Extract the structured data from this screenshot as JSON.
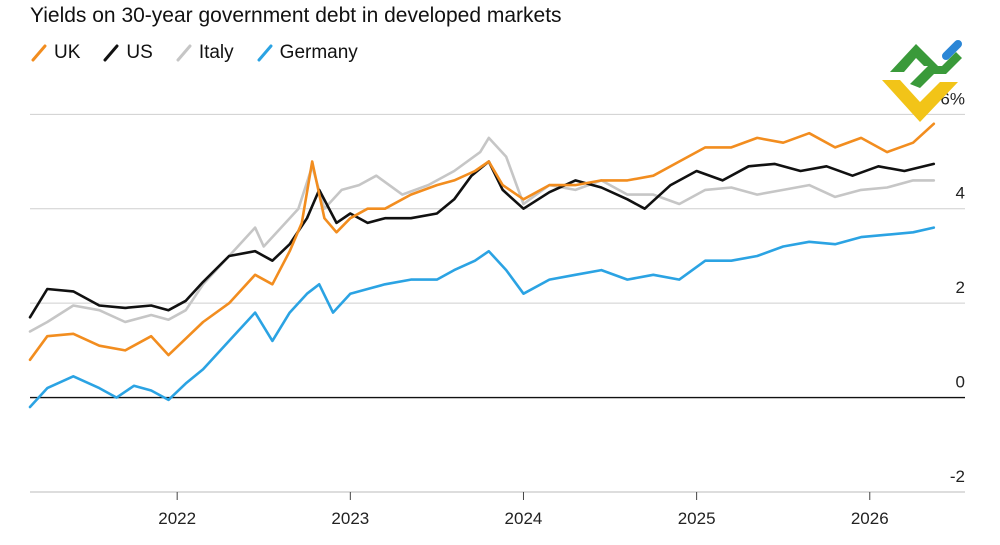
{
  "chart_data": {
    "type": "line",
    "title": "Yields on 30-year government debt in developed markets",
    "xlabel": "",
    "ylabel": "",
    "y_unit_suffix": "%",
    "ylim": [
      -2,
      6.6
    ],
    "y_ticks": [
      -2,
      0,
      2,
      4,
      6
    ],
    "y_tick_labels": [
      "-2",
      "0",
      "2",
      "4",
      "6%"
    ],
    "x_range": [
      2021.15,
      2026.55
    ],
    "x_ticks": [
      2022,
      2023,
      2024,
      2025,
      2026
    ],
    "x_tick_labels": [
      "2022",
      "2023",
      "2024",
      "2025",
      "2026"
    ],
    "grid": true,
    "legend_position": "top-left",
    "series": [
      {
        "name": "Italy",
        "color": "#c6c6c6",
        "points": [
          [
            2021.15,
            1.4
          ],
          [
            2021.25,
            1.6
          ],
          [
            2021.4,
            1.95
          ],
          [
            2021.55,
            1.85
          ],
          [
            2021.7,
            1.6
          ],
          [
            2021.85,
            1.75
          ],
          [
            2021.95,
            1.65
          ],
          [
            2022.05,
            1.85
          ],
          [
            2022.15,
            2.4
          ],
          [
            2022.3,
            3.0
          ],
          [
            2022.45,
            3.6
          ],
          [
            2022.5,
            3.2
          ],
          [
            2022.6,
            3.6
          ],
          [
            2022.7,
            4.0
          ],
          [
            2022.78,
            4.9
          ],
          [
            2022.85,
            4.0
          ],
          [
            2022.95,
            4.4
          ],
          [
            2023.05,
            4.5
          ],
          [
            2023.15,
            4.7
          ],
          [
            2023.3,
            4.3
          ],
          [
            2023.45,
            4.5
          ],
          [
            2023.6,
            4.8
          ],
          [
            2023.75,
            5.2
          ],
          [
            2023.8,
            5.5
          ],
          [
            2023.9,
            5.1
          ],
          [
            2024.0,
            4.1
          ],
          [
            2024.15,
            4.5
          ],
          [
            2024.3,
            4.4
          ],
          [
            2024.45,
            4.6
          ],
          [
            2024.6,
            4.3
          ],
          [
            2024.75,
            4.3
          ],
          [
            2024.9,
            4.1
          ],
          [
            2025.05,
            4.4
          ],
          [
            2025.2,
            4.45
          ],
          [
            2025.35,
            4.3
          ],
          [
            2025.5,
            4.4
          ],
          [
            2025.65,
            4.5
          ],
          [
            2025.8,
            4.25
          ],
          [
            2025.95,
            4.4
          ],
          [
            2026.1,
            4.45
          ],
          [
            2026.25,
            4.6
          ],
          [
            2026.37,
            4.6
          ]
        ]
      },
      {
        "name": "US",
        "color": "#111111",
        "points": [
          [
            2021.15,
            1.7
          ],
          [
            2021.25,
            2.3
          ],
          [
            2021.4,
            2.25
          ],
          [
            2021.55,
            1.95
          ],
          [
            2021.7,
            1.9
          ],
          [
            2021.85,
            1.95
          ],
          [
            2021.95,
            1.85
          ],
          [
            2022.05,
            2.05
          ],
          [
            2022.15,
            2.45
          ],
          [
            2022.3,
            3.0
          ],
          [
            2022.45,
            3.1
          ],
          [
            2022.55,
            2.9
          ],
          [
            2022.65,
            3.25
          ],
          [
            2022.75,
            3.8
          ],
          [
            2022.82,
            4.4
          ],
          [
            2022.92,
            3.7
          ],
          [
            2023.0,
            3.9
          ],
          [
            2023.1,
            3.7
          ],
          [
            2023.2,
            3.8
          ],
          [
            2023.35,
            3.8
          ],
          [
            2023.5,
            3.9
          ],
          [
            2023.6,
            4.2
          ],
          [
            2023.7,
            4.7
          ],
          [
            2023.8,
            5.0
          ],
          [
            2023.88,
            4.4
          ],
          [
            2024.0,
            4.0
          ],
          [
            2024.15,
            4.35
          ],
          [
            2024.3,
            4.6
          ],
          [
            2024.45,
            4.45
          ],
          [
            2024.6,
            4.2
          ],
          [
            2024.7,
            4.0
          ],
          [
            2024.85,
            4.5
          ],
          [
            2025.0,
            4.8
          ],
          [
            2025.15,
            4.6
          ],
          [
            2025.3,
            4.9
          ],
          [
            2025.45,
            4.95
          ],
          [
            2025.6,
            4.8
          ],
          [
            2025.75,
            4.9
          ],
          [
            2025.9,
            4.7
          ],
          [
            2026.05,
            4.9
          ],
          [
            2026.2,
            4.8
          ],
          [
            2026.37,
            4.95
          ]
        ]
      },
      {
        "name": "UK",
        "color": "#f28d1f",
        "points": [
          [
            2021.15,
            0.8
          ],
          [
            2021.25,
            1.3
          ],
          [
            2021.4,
            1.35
          ],
          [
            2021.55,
            1.1
          ],
          [
            2021.7,
            1.0
          ],
          [
            2021.85,
            1.3
          ],
          [
            2021.95,
            0.9
          ],
          [
            2022.05,
            1.25
          ],
          [
            2022.15,
            1.6
          ],
          [
            2022.3,
            2.0
          ],
          [
            2022.45,
            2.6
          ],
          [
            2022.55,
            2.4
          ],
          [
            2022.65,
            3.1
          ],
          [
            2022.72,
            3.7
          ],
          [
            2022.78,
            5.0
          ],
          [
            2022.85,
            3.8
          ],
          [
            2022.92,
            3.5
          ],
          [
            2023.0,
            3.8
          ],
          [
            2023.1,
            4.0
          ],
          [
            2023.2,
            4.0
          ],
          [
            2023.35,
            4.3
          ],
          [
            2023.5,
            4.5
          ],
          [
            2023.6,
            4.6
          ],
          [
            2023.72,
            4.8
          ],
          [
            2023.8,
            5.0
          ],
          [
            2023.88,
            4.5
          ],
          [
            2024.0,
            4.2
          ],
          [
            2024.15,
            4.5
          ],
          [
            2024.3,
            4.5
          ],
          [
            2024.45,
            4.6
          ],
          [
            2024.6,
            4.6
          ],
          [
            2024.75,
            4.7
          ],
          [
            2024.9,
            5.0
          ],
          [
            2025.05,
            5.3
          ],
          [
            2025.2,
            5.3
          ],
          [
            2025.35,
            5.5
          ],
          [
            2025.5,
            5.4
          ],
          [
            2025.65,
            5.6
          ],
          [
            2025.8,
            5.3
          ],
          [
            2025.95,
            5.5
          ],
          [
            2026.1,
            5.2
          ],
          [
            2026.25,
            5.4
          ],
          [
            2026.37,
            5.8
          ]
        ]
      },
      {
        "name": "Germany",
        "color": "#2ba3e3",
        "points": [
          [
            2021.15,
            -0.2
          ],
          [
            2021.25,
            0.2
          ],
          [
            2021.4,
            0.45
          ],
          [
            2021.55,
            0.2
          ],
          [
            2021.65,
            0.0
          ],
          [
            2021.75,
            0.25
          ],
          [
            2021.85,
            0.15
          ],
          [
            2021.95,
            -0.05
          ],
          [
            2022.05,
            0.3
          ],
          [
            2022.15,
            0.6
          ],
          [
            2022.3,
            1.2
          ],
          [
            2022.45,
            1.8
          ],
          [
            2022.55,
            1.2
          ],
          [
            2022.65,
            1.8
          ],
          [
            2022.75,
            2.2
          ],
          [
            2022.82,
            2.4
          ],
          [
            2022.9,
            1.8
          ],
          [
            2023.0,
            2.2
          ],
          [
            2023.1,
            2.3
          ],
          [
            2023.2,
            2.4
          ],
          [
            2023.35,
            2.5
          ],
          [
            2023.5,
            2.5
          ],
          [
            2023.6,
            2.7
          ],
          [
            2023.72,
            2.9
          ],
          [
            2023.8,
            3.1
          ],
          [
            2023.9,
            2.7
          ],
          [
            2024.0,
            2.2
          ],
          [
            2024.15,
            2.5
          ],
          [
            2024.3,
            2.6
          ],
          [
            2024.45,
            2.7
          ],
          [
            2024.6,
            2.5
          ],
          [
            2024.75,
            2.6
          ],
          [
            2024.9,
            2.5
          ],
          [
            2025.05,
            2.9
          ],
          [
            2025.2,
            2.9
          ],
          [
            2025.35,
            3.0
          ],
          [
            2025.5,
            3.2
          ],
          [
            2025.65,
            3.3
          ],
          [
            2025.8,
            3.25
          ],
          [
            2025.95,
            3.4
          ],
          [
            2026.1,
            3.45
          ],
          [
            2026.25,
            3.5
          ],
          [
            2026.37,
            3.6
          ]
        ]
      }
    ],
    "legend_order": [
      "UK",
      "US",
      "Italy",
      "Germany"
    ]
  }
}
